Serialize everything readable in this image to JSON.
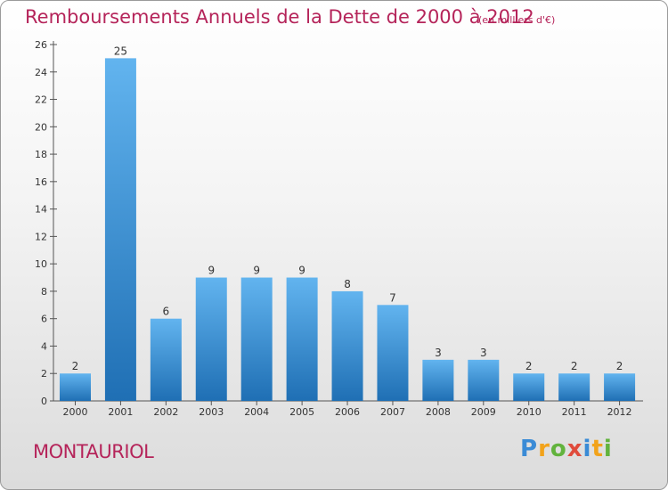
{
  "header": {
    "title": "Remboursements Annuels de la Dette de 2000 à 2012",
    "unit": "(en milliers d'€)"
  },
  "footer": {
    "commune": "MONTAURIOL",
    "logo": "Proxiti"
  },
  "colors": {
    "title": "#b5245a",
    "bar_light": "#5fb0ec",
    "bar_dark": "#1f6fb4"
  },
  "chart_data": {
    "type": "bar",
    "title": "Remboursements Annuels de la Dette de 2000 à 2012",
    "subtitle": "(en milliers d'€)",
    "categories": [
      "2000",
      "2001",
      "2002",
      "2003",
      "2004",
      "2005",
      "2006",
      "2007",
      "2008",
      "2009",
      "2010",
      "2011",
      "2012"
    ],
    "values": [
      2,
      25,
      6,
      9,
      9,
      9,
      8,
      7,
      3,
      3,
      2,
      2,
      2
    ],
    "ylim": [
      0,
      26
    ],
    "yticks": [
      0,
      2,
      4,
      6,
      8,
      10,
      12,
      14,
      16,
      18,
      20,
      22,
      24,
      26
    ],
    "grid": false,
    "legend": "none"
  }
}
